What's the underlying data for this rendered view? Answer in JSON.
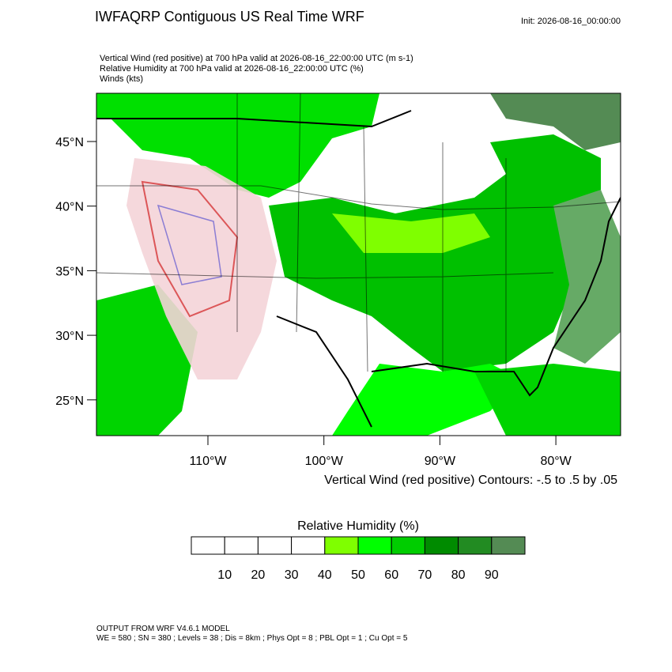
{
  "header": {
    "title": "IWFAQRP Contiguous US Real Time WRF",
    "init": "Init: 2026-08-16_00:00:00",
    "lines": [
      "Vertical Wind (red positive) at 700 hPa valid at 2026-08-16_22:00:00 UTC   (m s-1)",
      "Relative Humidity at 700 hPa valid at 2026-08-16_22:00:00 UTC   (%)",
      "Winds   (kts)"
    ]
  },
  "map": {
    "lat_labels": [
      "45°N",
      "40°N",
      "35°N",
      "30°N",
      "25°N"
    ],
    "lon_labels": [
      "110°W",
      "100°W",
      "90°W",
      "80°W"
    ],
    "contour_note": "Vertical Wind (red positive) Contours: -.5 to .5 by .05"
  },
  "colorbar": {
    "title": "Relative Humidity  (%)",
    "ticks": [
      10,
      20,
      30,
      40,
      50,
      60,
      70,
      80,
      90
    ],
    "colors": [
      "#ffffff",
      "#ffffff",
      "#ffffff",
      "#ffffff",
      "#7fff00",
      "#00ff00",
      "#00cd00",
      "#008b00",
      "#228b22",
      "#548b54"
    ]
  },
  "footer": {
    "lines": [
      "OUTPUT FROM WRF V4.6.1 MODEL",
      "WE = 580 ; SN = 380 ; Levels = 38 ; Dis = 8km ; Phys Opt = 8 ; PBL Opt = 1 ; Cu Opt = 5"
    ]
  }
}
